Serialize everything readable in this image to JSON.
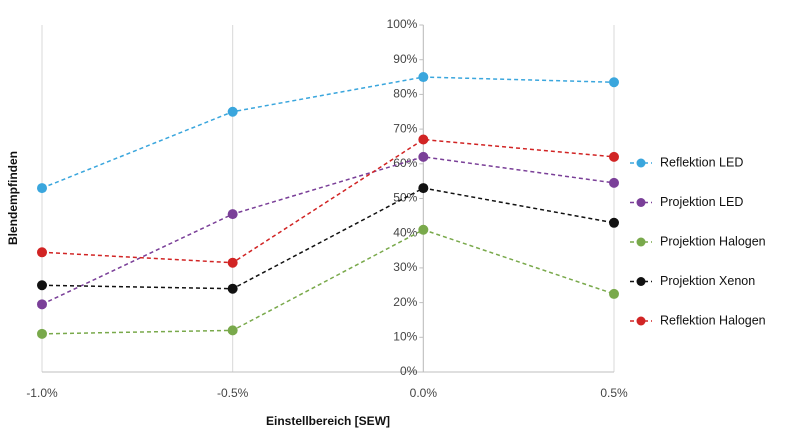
{
  "chart_data": {
    "type": "line",
    "x_label": "Einstellbereich [SEW]",
    "y_label": "Blendempfinden",
    "x": [
      -1.0,
      -0.5,
      0.0,
      0.5
    ],
    "xlim": [
      -1.0,
      0.5
    ],
    "xticks": [
      {
        "value": -1.0,
        "label": "-1.0%"
      },
      {
        "value": -0.5,
        "label": "-0.5%"
      },
      {
        "value": 0.0,
        "label": "0.0%"
      },
      {
        "value": 0.5,
        "label": "0.5%"
      }
    ],
    "ylim": [
      0,
      100
    ],
    "yticks": [
      {
        "value": 0,
        "label": "0%"
      },
      {
        "value": 10,
        "label": "10%"
      },
      {
        "value": 20,
        "label": "20%"
      },
      {
        "value": 30,
        "label": "30%"
      },
      {
        "value": 40,
        "label": "40%"
      },
      {
        "value": 50,
        "label": "50%"
      },
      {
        "value": 60,
        "label": "60%"
      },
      {
        "value": 70,
        "label": "70%"
      },
      {
        "value": 80,
        "label": "80%"
      },
      {
        "value": 90,
        "label": "90%"
      },
      {
        "value": 100,
        "label": "100%"
      }
    ],
    "grid": "x",
    "legend": "right",
    "series": [
      {
        "name": "Reflektion LED",
        "color": "#3aa6dd",
        "values": [
          53,
          75,
          85,
          83.5
        ]
      },
      {
        "name": "Projektion LED",
        "color": "#7a3f98",
        "values": [
          19.5,
          45.5,
          62,
          54.5
        ]
      },
      {
        "name": "Projektion Halogen",
        "color": "#79a94b",
        "values": [
          11,
          12,
          41,
          22.5
        ]
      },
      {
        "name": "Projektion Xenon",
        "color": "#111111",
        "values": [
          25,
          24,
          53,
          43
        ]
      },
      {
        "name": "Reflektion Halogen",
        "color": "#d12424",
        "values": [
          34.5,
          31.5,
          67,
          62
        ]
      }
    ]
  }
}
